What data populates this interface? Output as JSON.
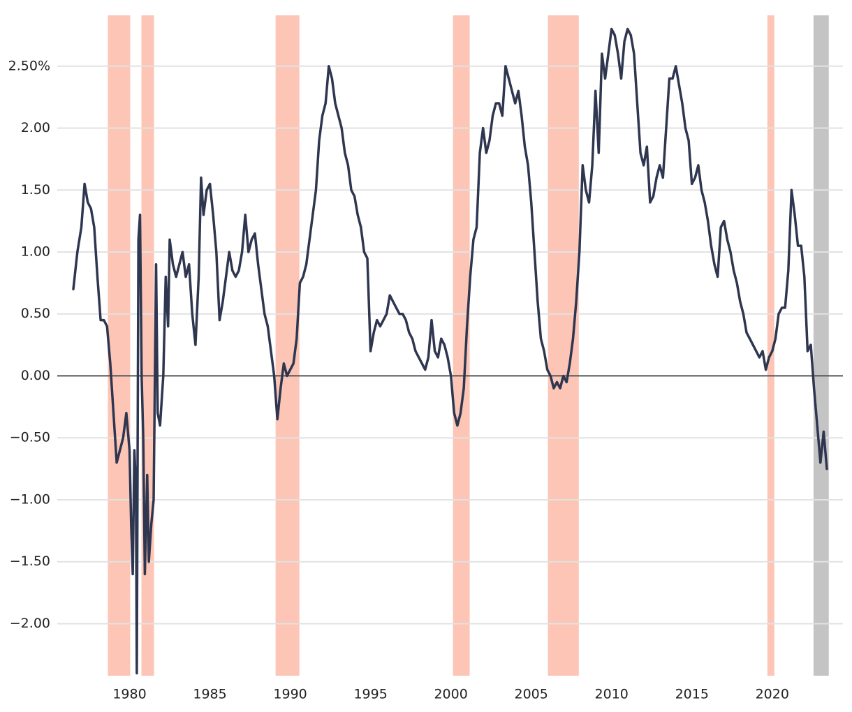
{
  "chart_data": {
    "type": "line",
    "x": [
      1976.5,
      1976.75,
      1977.0,
      1977.2,
      1977.4,
      1977.6,
      1977.8,
      1978.0,
      1978.2,
      1978.4,
      1978.6,
      1978.8,
      1979.0,
      1979.2,
      1979.4,
      1979.6,
      1979.8,
      1980.0,
      1980.1,
      1980.2,
      1980.3,
      1980.4,
      1980.45,
      1980.55,
      1980.65,
      1980.75,
      1980.85,
      1980.95,
      1981.1,
      1981.2,
      1981.35,
      1981.5,
      1981.65,
      1981.75,
      1981.9,
      1982.1,
      1982.25,
      1982.4,
      1982.5,
      1982.7,
      1982.9,
      1983.1,
      1983.3,
      1983.5,
      1983.7,
      1983.9,
      1984.1,
      1984.3,
      1984.45,
      1984.6,
      1984.8,
      1985.0,
      1985.2,
      1985.4,
      1985.6,
      1985.8,
      1986.0,
      1986.2,
      1986.4,
      1986.6,
      1986.8,
      1987.0,
      1987.2,
      1987.4,
      1987.6,
      1987.8,
      1988.0,
      1988.2,
      1988.4,
      1988.6,
      1988.8,
      1989.0,
      1989.2,
      1989.4,
      1989.6,
      1989.8,
      1990.0,
      1990.2,
      1990.4,
      1990.6,
      1990.8,
      1991.0,
      1991.2,
      1991.4,
      1991.6,
      1991.8,
      1992.0,
      1992.2,
      1992.4,
      1992.6,
      1992.8,
      1993.0,
      1993.2,
      1993.4,
      1993.6,
      1993.8,
      1994.0,
      1994.2,
      1994.4,
      1994.6,
      1994.8,
      1995.0,
      1995.2,
      1995.4,
      1995.6,
      1995.8,
      1996.0,
      1996.2,
      1996.4,
      1996.6,
      1996.8,
      1997.0,
      1997.2,
      1997.4,
      1997.6,
      1997.8,
      1998.0,
      1998.2,
      1998.4,
      1998.6,
      1998.8,
      1999.0,
      1999.2,
      1999.4,
      1999.6,
      1999.8,
      2000.0,
      2000.2,
      2000.4,
      2000.6,
      2000.8,
      2001.0,
      2001.2,
      2001.4,
      2001.6,
      2001.8,
      2002.0,
      2002.2,
      2002.4,
      2002.6,
      2002.8,
      2003.0,
      2003.2,
      2003.4,
      2003.6,
      2003.8,
      2004.0,
      2004.2,
      2004.4,
      2004.6,
      2004.8,
      2005.0,
      2005.2,
      2005.4,
      2005.6,
      2005.8,
      2006.0,
      2006.2,
      2006.4,
      2006.6,
      2006.8,
      2007.0,
      2007.2,
      2007.4,
      2007.6,
      2007.8,
      2008.0,
      2008.2,
      2008.4,
      2008.6,
      2008.8,
      2009.0,
      2009.2,
      2009.4,
      2009.6,
      2009.8,
      2010.0,
      2010.2,
      2010.4,
      2010.6,
      2010.8,
      2011.0,
      2011.2,
      2011.4,
      2011.6,
      2011.8,
      2012.0,
      2012.2,
      2012.4,
      2012.6,
      2012.8,
      2013.0,
      2013.2,
      2013.4,
      2013.6,
      2013.8,
      2014.0,
      2014.2,
      2014.4,
      2014.6,
      2014.8,
      2015.0,
      2015.2,
      2015.4,
      2015.6,
      2015.8,
      2016.0,
      2016.2,
      2016.4,
      2016.6,
      2016.8,
      2017.0,
      2017.2,
      2017.4,
      2017.6,
      2017.8,
      2018.0,
      2018.2,
      2018.4,
      2018.6,
      2018.8,
      2019.0,
      2019.2,
      2019.4,
      2019.6,
      2019.8,
      2020.0,
      2020.2,
      2020.4,
      2020.6,
      2020.8,
      2021.0,
      2021.2,
      2021.4,
      2021.6,
      2021.8,
      2022.0,
      2022.2,
      2022.4,
      2022.6,
      2022.8,
      2023.0,
      2023.2,
      2023.4
    ],
    "series": [
      {
        "color": "#2e3650",
        "values": [
          0.7,
          1.0,
          1.2,
          1.55,
          1.4,
          1.35,
          1.2,
          0.8,
          0.45,
          0.45,
          0.4,
          0.1,
          -0.3,
          -0.7,
          -0.6,
          -0.5,
          -0.3,
          -0.6,
          -1.2,
          -1.6,
          -0.6,
          -0.9,
          -2.4,
          1.1,
          1.3,
          0.0,
          -0.5,
          -1.6,
          -0.8,
          -1.5,
          -1.2,
          -1.0,
          0.9,
          -0.3,
          -0.4,
          0.0,
          0.8,
          0.4,
          1.1,
          0.9,
          0.8,
          0.9,
          1.0,
          0.8,
          0.9,
          0.5,
          0.25,
          0.8,
          1.6,
          1.3,
          1.5,
          1.55,
          1.3,
          1.0,
          0.45,
          0.6,
          0.8,
          1.0,
          0.85,
          0.8,
          0.85,
          1.0,
          1.3,
          1.0,
          1.1,
          1.15,
          0.9,
          0.7,
          0.5,
          0.4,
          0.2,
          0.0,
          -0.35,
          -0.1,
          0.1,
          0.0,
          0.05,
          0.1,
          0.3,
          0.75,
          0.8,
          0.9,
          1.1,
          1.3,
          1.5,
          1.9,
          2.1,
          2.2,
          2.5,
          2.4,
          2.2,
          2.1,
          2.0,
          1.8,
          1.7,
          1.5,
          1.45,
          1.3,
          1.2,
          1.0,
          0.95,
          0.2,
          0.35,
          0.45,
          0.4,
          0.45,
          0.5,
          0.65,
          0.6,
          0.55,
          0.5,
          0.5,
          0.45,
          0.35,
          0.3,
          0.2,
          0.15,
          0.1,
          0.05,
          0.15,
          0.45,
          0.2,
          0.15,
          0.3,
          0.25,
          0.15,
          0.0,
          -0.3,
          -0.4,
          -0.3,
          -0.1,
          0.4,
          0.8,
          1.1,
          1.2,
          1.8,
          2.0,
          1.8,
          1.9,
          2.1,
          2.2,
          2.2,
          2.1,
          2.5,
          2.4,
          2.3,
          2.2,
          2.3,
          2.1,
          1.85,
          1.7,
          1.4,
          1.0,
          0.6,
          0.3,
          0.2,
          0.05,
          0.0,
          -0.1,
          -0.05,
          -0.1,
          0.0,
          -0.05,
          0.1,
          0.3,
          0.6,
          1.0,
          1.7,
          1.5,
          1.4,
          1.7,
          2.3,
          1.8,
          2.6,
          2.4,
          2.6,
          2.8,
          2.75,
          2.6,
          2.4,
          2.7,
          2.8,
          2.75,
          2.6,
          2.2,
          1.8,
          1.7,
          1.85,
          1.4,
          1.45,
          1.6,
          1.7,
          1.6,
          2.0,
          2.4,
          2.4,
          2.5,
          2.35,
          2.2,
          2.0,
          1.9,
          1.55,
          1.6,
          1.7,
          1.5,
          1.4,
          1.25,
          1.05,
          0.9,
          0.8,
          1.2,
          1.25,
          1.1,
          1.0,
          0.85,
          0.75,
          0.6,
          0.5,
          0.35,
          0.3,
          0.25,
          0.2,
          0.15,
          0.2,
          0.05,
          0.15,
          0.2,
          0.3,
          0.5,
          0.55,
          0.55,
          0.85,
          1.5,
          1.3,
          1.05,
          1.05,
          0.8,
          0.2,
          0.25,
          -0.1,
          -0.4,
          -0.7,
          -0.45,
          -0.75
        ]
      }
    ],
    "shaded_regions": [
      {
        "start": 1978.65,
        "end": 1980.04,
        "color": "#fcc5b5"
      },
      {
        "start": 1980.74,
        "end": 1981.52,
        "color": "#fcc5b5"
      },
      {
        "start": 1989.09,
        "end": 1990.57,
        "color": "#fcc5b5"
      },
      {
        "start": 2000.13,
        "end": 2001.17,
        "color": "#fcc5b5"
      },
      {
        "start": 2006.04,
        "end": 2007.96,
        "color": "#fcc5b5"
      },
      {
        "start": 2019.7,
        "end": 2020.13,
        "color": "#fcc5b5"
      },
      {
        "start": 2022.57,
        "end": 2023.52,
        "color": "#c4c4c4"
      }
    ],
    "xlim": [
      1975.5,
      2024.4
    ],
    "xticks": [
      1980,
      1985,
      1990,
      1995,
      2000,
      2005,
      2010,
      2015,
      2020
    ],
    "ylim": [
      -2.42,
      2.91
    ],
    "yticks": [
      {
        "value": -2,
        "label": "−2.00"
      },
      {
        "value": -1.5,
        "label": "−1.50"
      },
      {
        "value": -1,
        "label": "−1.00"
      },
      {
        "value": -0.5,
        "label": "−0.50"
      },
      {
        "value": 0,
        "label": "0.00"
      },
      {
        "value": 0.5,
        "label": "0.50"
      },
      {
        "value": 1,
        "label": "1.00"
      },
      {
        "value": 1.5,
        "label": "1.50"
      },
      {
        "value": 2,
        "label": "2.00"
      },
      {
        "value": 2.5,
        "label": "2.50%"
      }
    ],
    "grid": true
  }
}
